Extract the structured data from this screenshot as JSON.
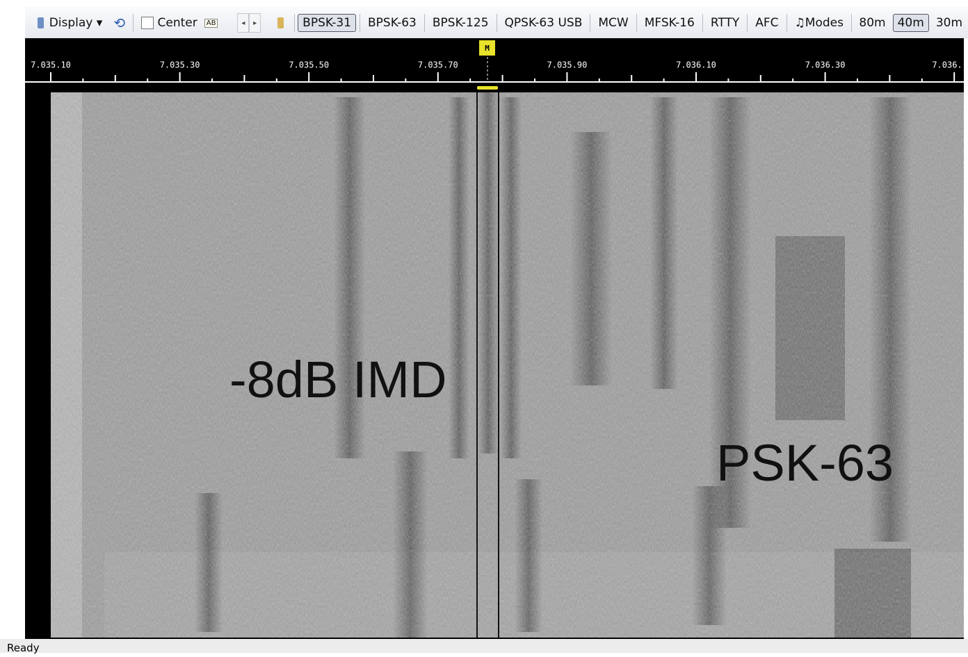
{
  "toolbar": {
    "display": "Display",
    "center": "Center",
    "center_icon": "AB",
    "mode_buttons": [
      "BPSK-31",
      "BPSK-63",
      "BPSK-125",
      "QPSK-63 USB",
      "MCW",
      "MFSK-16",
      "RTTY",
      "AFC"
    ],
    "modes": "Modes",
    "bands": [
      "80m",
      "40m",
      "30m"
    ]
  },
  "scale": {
    "labels": [
      "7.035.10",
      "7.035.30",
      "7.035.50",
      "7.035.70",
      "7.035.90",
      "7.036.10",
      "7.036.30",
      "7.036."
    ]
  },
  "marker": "M",
  "annotations": [
    "-8dB IMD",
    "PSK-63"
  ],
  "status": "Ready"
}
